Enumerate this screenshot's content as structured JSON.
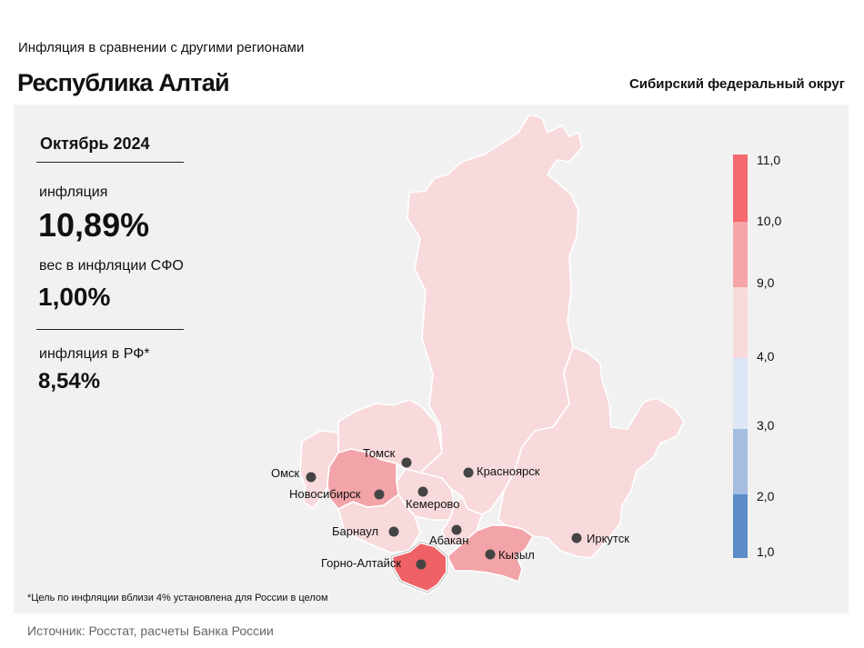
{
  "header": {
    "subtitle": "Инфляция  в сравнении  с другими  регионами",
    "title": "Республика Алтай",
    "district": "Сибирский федеральный округ"
  },
  "stats": {
    "period": "Октябрь 2024",
    "inflation_label": "инфляция",
    "inflation_value": "10,89%",
    "weight_label": "вес в инфляции  СФО",
    "weight_value": "1,00%",
    "rf_label": "инфляция  в РФ*",
    "rf_value": "8,54%"
  },
  "cities": [
    {
      "name": "Томск"
    },
    {
      "name": "Омск"
    },
    {
      "name": "Новосибирск"
    },
    {
      "name": "Кемерово"
    },
    {
      "name": "Красноярск"
    },
    {
      "name": "Барнаул"
    },
    {
      "name": "Абакан"
    },
    {
      "name": "Кызыл"
    },
    {
      "name": "Горно-Алтайск"
    },
    {
      "name": "Иркутск"
    }
  ],
  "legend": {
    "ticks": [
      "11,0",
      "10,0",
      "9,0",
      "4,0",
      "3,0",
      "2,0",
      "1,0"
    ],
    "colors": [
      "#f46a6f",
      "#f6a4a8",
      "#f8dadc",
      "#dde6f4",
      "#a4bde0",
      "#5b8cc8"
    ]
  },
  "region_colors": {
    "krasnoyarsk": "#f8dadc",
    "irkutsk": "#f8dadc",
    "tomsk": "#f8dadc",
    "omsk": "#f8dadc",
    "novosibirsk": "#f2a4a8",
    "kemerovo": "#f8dadc",
    "altai_krai": "#f8dadc",
    "khakassia": "#f8dadc",
    "tuva": "#f2a4a8",
    "altai_republic": "#ee6266"
  },
  "footer": {
    "note": "*Цель по инфляции вблизи 4% установлена для России в целом",
    "source": "Источник: Росстат, расчеты Банка России"
  }
}
